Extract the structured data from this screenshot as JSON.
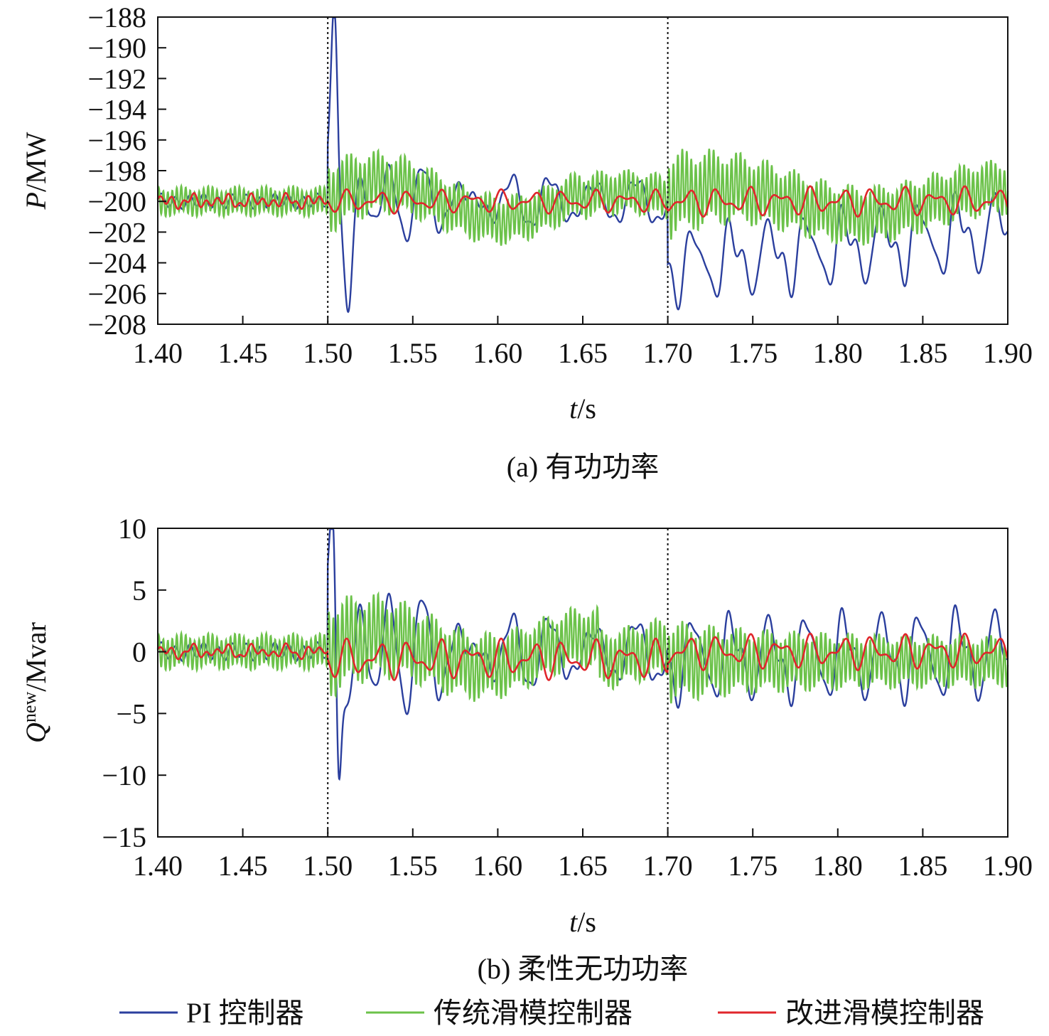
{
  "chart_data": [
    {
      "type": "line",
      "subplot": "(a)",
      "caption": "(a) 有功功率",
      "ylabel_var": "P",
      "ylabel_unit": "/MW",
      "xlabel_var": "t",
      "xlabel_unit": "/s",
      "xlim": [
        1.4,
        1.9
      ],
      "ylim": [
        -208,
        -188
      ],
      "xticks": [
        "1.40",
        "1.45",
        "1.50",
        "1.55",
        "1.60",
        "1.65",
        "1.70",
        "1.75",
        "1.80",
        "1.85",
        "1.90"
      ],
      "yticks": [
        "−188",
        "−190",
        "−192",
        "−194",
        "−196",
        "−198",
        "−200",
        "−202",
        "−204",
        "−206",
        "−208"
      ],
      "ytick_values": [
        -188,
        -190,
        -192,
        -194,
        -196,
        -198,
        -200,
        -202,
        -204,
        -206,
        -208
      ],
      "event_lines": [
        1.5,
        1.7
      ],
      "series": [
        {
          "name": "PI 控制器",
          "values": {
            "pre_mean": -200,
            "pre_amp": 0.4,
            "e1": [
              -190,
              -205.4,
              -196.3,
              -198.5
            ],
            "e2": [
              -205.8,
              -206.0,
              -205.6,
              -202.8
            ]
          }
        },
        {
          "name": "传统滑模控制器",
          "values": {
            "pre_mean": -200,
            "pre_amp": 0.8,
            "post1_amp": 2.0,
            "post2_amp": 2.4
          }
        },
        {
          "name": "改进滑模控制器",
          "values": {
            "pre_mean": -200,
            "pre_amp": 0.35,
            "post1_amp": 0.8,
            "post2_amp": 1.0
          }
        }
      ],
      "grid": false
    },
    {
      "type": "line",
      "subplot": "(b)",
      "caption": "(b) 柔性无功功率",
      "ylabel_var": "Q",
      "ylabel_sup": "new",
      "ylabel_unit": "/Mvar",
      "xlabel_var": "t",
      "xlabel_unit": "/s",
      "xlim": [
        1.4,
        1.9
      ],
      "ylim": [
        -15,
        10
      ],
      "xticks": [
        "1.40",
        "1.45",
        "1.50",
        "1.55",
        "1.60",
        "1.65",
        "1.70",
        "1.75",
        "1.80",
        "1.85",
        "1.90"
      ],
      "yticks": [
        "10",
        "5",
        "0",
        "−5",
        "−10",
        "−15"
      ],
      "ytick_values": [
        10,
        5,
        0,
        -5,
        -10,
        -15
      ],
      "event_lines": [
        1.5,
        1.7
      ],
      "series": [
        {
          "name": "PI 控制器",
          "values": {
            "pre_mean": 0,
            "pre_amp": 0.6,
            "e1": [
              6.8,
              -12.6,
              9.5,
              7.1
            ],
            "e2": [
              -5.2,
              2.5,
              -4.7,
              2.5
            ]
          }
        },
        {
          "name": "传统滑模控制器",
          "values": {
            "pre_mean": 0,
            "pre_amp": 1.2,
            "post1_amp": 3.3,
            "post2_amp": 2.8
          }
        },
        {
          "name": "改进滑模控制器",
          "values": {
            "pre_mean": 0,
            "pre_amp": 0.5,
            "post1_amp": 1.7,
            "post2_amp": 1.5
          }
        }
      ],
      "grid": false
    }
  ],
  "legend": {
    "placement": "bottom-center",
    "items": [
      {
        "label": "PI 控制器",
        "color": "#2b3f9e"
      },
      {
        "label": "传统滑模控制器",
        "color": "#6cc24a"
      },
      {
        "label": "改进滑模控制器",
        "color": "#e0262b"
      }
    ]
  }
}
